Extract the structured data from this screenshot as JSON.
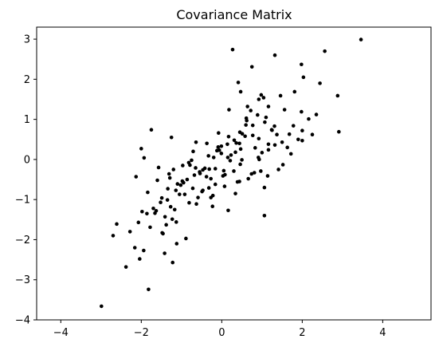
{
  "chart_data": {
    "type": "scatter",
    "title": "Covariance Matrix",
    "xlabel": "",
    "ylabel": "",
    "xlim": [
      -4.6,
      5.2
    ],
    "ylim": [
      -4.0,
      3.3
    ],
    "grid": false,
    "legend": "none",
    "marker_color": "#000000",
    "x_ticks": [
      -4,
      -2,
      0,
      2,
      4
    ],
    "x_tick_labels": [
      "−4",
      "−2",
      "0",
      "2",
      "4"
    ],
    "y_ticks": [
      -4,
      -3,
      -2,
      -1,
      0,
      1,
      2,
      3
    ],
    "y_tick_labels": [
      "−4",
      "−3",
      "−2",
      "−1",
      "0",
      "1",
      "2",
      "3"
    ],
    "series": [
      {
        "x": [
          -2.99,
          3.46,
          2.88,
          2.56,
          2.03,
          1.32,
          0.27,
          -0.27,
          -1.82,
          -1.42,
          -2.7,
          -2.38,
          -2.61,
          -1.98,
          -1.12,
          -2.16,
          2.44,
          1.98,
          2.91,
          0.75,
          0.41,
          0.47,
          0.91,
          1.06,
          -1.25,
          -1.48,
          -1.22,
          -0.22,
          0.16,
          0.44,
          -0.65,
          -2.0,
          -1.93,
          -1.75,
          -2.13,
          1.16,
          1.56,
          1.04,
          2.16,
          1.78,
          1.81,
          1.98,
          2.35,
          2.25,
          2.0,
          2.0,
          1.68,
          1.5,
          1.32,
          1.1,
          1.0,
          0.92,
          0.72,
          0.58,
          0.44,
          0.34,
          0.18,
          0.05,
          -0.08,
          -0.2,
          -0.37,
          -0.54,
          -0.71,
          -0.86,
          -1.02,
          -1.2,
          -1.34,
          -1.52,
          -1.7,
          -1.86,
          -2.07,
          -2.28,
          1.72,
          1.52,
          1.31,
          1.16,
          0.97,
          0.83,
          0.66,
          0.51,
          0.39,
          0.23,
          0.07,
          -0.09,
          -0.27,
          -0.42,
          -0.59,
          -0.75,
          -0.92,
          -1.1,
          -1.27,
          -1.41,
          -1.6,
          -1.78,
          -1.94,
          1.9,
          1.63,
          1.41,
          1.25,
          1.07,
          0.89,
          0.74,
          0.6,
          0.46,
          0.31,
          0.15,
          -0.01,
          -0.16,
          -0.33,
          -0.49,
          -0.68,
          -0.81,
          -0.97,
          -1.14,
          -1.31,
          -1.49,
          -1.66,
          -1.84,
          -2.04,
          1.46,
          1.24,
          1.06,
          0.92,
          0.77,
          0.62,
          0.47,
          0.34,
          0.17,
          0.03,
          -0.12,
          -0.31,
          -0.47,
          -0.64,
          -0.79,
          -0.95,
          -1.13,
          -1.29,
          -1.46,
          -1.63,
          1.37,
          1.16,
          0.98,
          0.81,
          0.64,
          0.5,
          0.36,
          0.21,
          0.08,
          -0.06,
          -0.23,
          -0.38,
          -0.55,
          -0.72,
          -0.89,
          -1.05,
          -1.23,
          -1.38,
          -1.57,
          1.14,
          0.93,
          0.77,
          0.61,
          0.45,
          0.3,
          0.14,
          -0.01,
          -0.16,
          -0.32,
          -0.47,
          -0.63,
          -0.82,
          -0.98,
          -1.17,
          -1.35
        ],
        "y": [
          -3.66,
          2.99,
          1.59,
          2.7,
          2.05,
          2.6,
          2.74,
          -0.95,
          -3.24,
          -2.34,
          -1.9,
          -2.68,
          -1.61,
          -1.3,
          -2.1,
          -2.2,
          1.9,
          2.37,
          0.69,
          2.31,
          1.92,
          1.69,
          0.05,
          -1.4,
          0.55,
          -1.83,
          -2.57,
          -0.9,
          -1.27,
          -0.55,
          -0.21,
          0.27,
          0.04,
          0.74,
          -0.43,
          1.32,
          1.24,
          1.54,
          1.01,
          0.84,
          1.69,
          1.19,
          1.12,
          0.62,
          0.47,
          0.72,
          0.63,
          0.43,
          0.36,
          1.05,
          0.17,
          0.52,
          1.22,
          0.58,
          0.4,
          0.18,
          1.24,
          -0.28,
          0.66,
          0.05,
          0.4,
          -0.35,
          0.2,
          -0.5,
          -0.64,
          -0.25,
          -0.73,
          -1.07,
          -1.22,
          -1.35,
          -1.57,
          -1.8,
          0.14,
          -0.13,
          0.83,
          0.24,
          -0.29,
          0.29,
          -0.48,
          0.64,
          -0.56,
          0.11,
          -0.67,
          0.31,
          -0.48,
          -0.22,
          -0.95,
          -0.02,
          -0.87,
          -0.61,
          -1.18,
          -1.43,
          -0.52,
          -1.69,
          -2.27,
          0.5,
          0.3,
          -0.25,
          0.73,
          0.93,
          1.11,
          -0.36,
          0.86,
          -0.12,
          0.48,
          0.05,
          0.33,
          -0.62,
          0.09,
          -0.8,
          -0.39,
          -1.08,
          -0.15,
          -0.77,
          -0.36,
          -0.96,
          -1.34,
          -0.82,
          -2.48,
          1.59,
          0.74,
          -0.7,
          1.5,
          0.6,
          0.97,
          0.26,
          -0.85,
          0.57,
          -0.41,
          0.22,
          -0.24,
          -0.77,
          0.43,
          -0.14,
          -0.58,
          -1.56,
          -0.46,
          -1.85,
          -1.28,
          0.62,
          0.38,
          1.61,
          -0.33,
          1.32,
          -0.01,
          0.41,
          -0.03,
          -0.38,
          0.23,
          -1.17,
          -0.43,
          -0.31,
          -0.72,
          -1.97,
          -0.87,
          -1.49,
          -1.63,
          -0.2,
          -0.41,
          0.0,
          0.85,
          1.03,
          0.68,
          -0.29,
          0.38,
          0.15,
          -0.23,
          -0.71,
          -0.26,
          -1.11,
          -0.08,
          -0.54,
          -1.25,
          -1.01
        ]
      }
    ]
  }
}
